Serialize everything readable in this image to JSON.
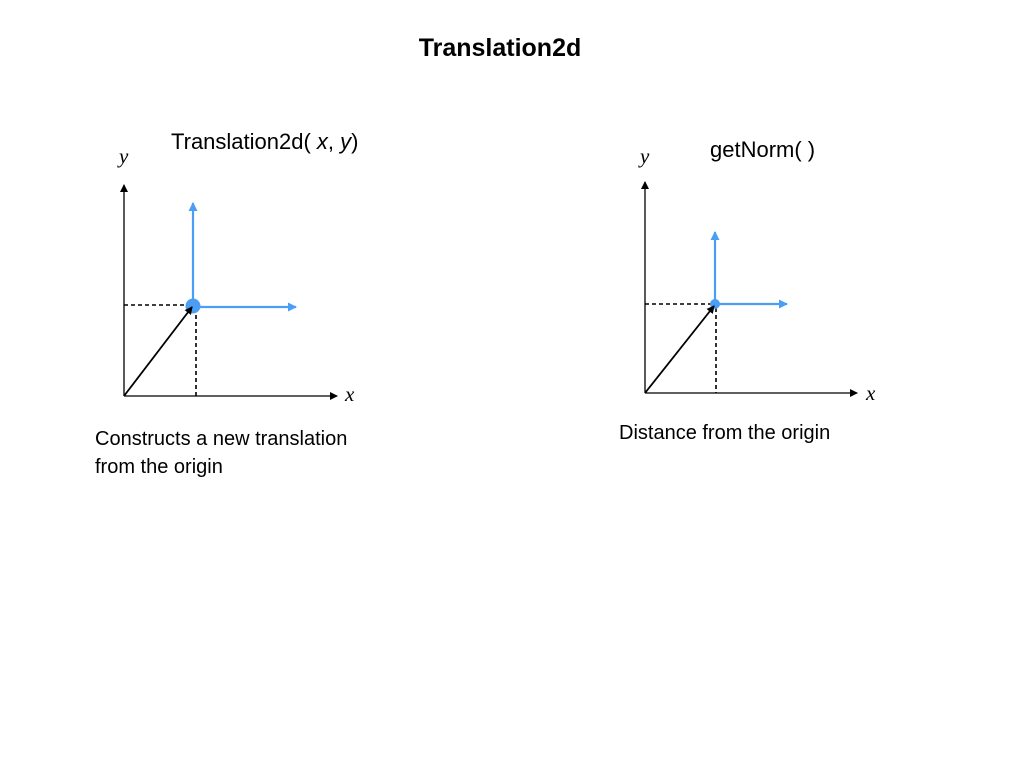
{
  "slide": {
    "title": "Translation2d"
  },
  "panels": [
    {
      "title_prefix": "Translation2d( ",
      "title_x": "x",
      "title_sep": ", ",
      "title_y": "y",
      "title_suffix": ")",
      "axis_x": "x",
      "axis_y": "y",
      "caption_line1": "Constructs a new translation",
      "caption_line2": "from the origin"
    },
    {
      "title": "getNorm( )",
      "axis_x": "x",
      "axis_y": "y",
      "caption_line1": "Distance from the origin"
    }
  ],
  "colors": {
    "vector": "#000000",
    "frame_arrows": "#4a9ff5",
    "point": "#4a9ff5"
  }
}
